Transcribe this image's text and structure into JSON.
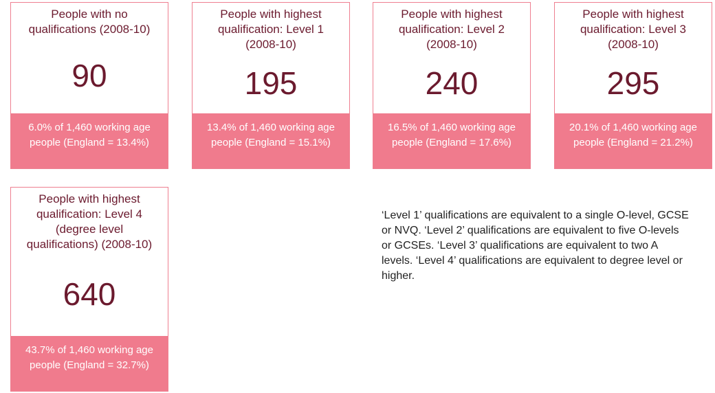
{
  "cards": [
    {
      "title": "People with no qualifications (2008-10)",
      "value": 90,
      "footer": "6.0% of 1,460 working age people (England = 13.4%)"
    },
    {
      "title": "People with highest qualification: Level 1 (2008-10)",
      "value": 195,
      "footer": "13.4% of 1,460 working age people (England = 15.1%)"
    },
    {
      "title": "People with highest qualification: Level 2 (2008-10)",
      "value": 240,
      "footer": "16.5% of 1,460 working age people (England = 17.6%)"
    },
    {
      "title": "People with highest qualification: Level 3 (2008-10)",
      "value": 295,
      "footer": "20.1% of 1,460 working age people (England = 21.2%)"
    },
    {
      "title": "People with highest qualification: Level 4 (degree level qualifications) (2008-10)",
      "value": 640,
      "footer": "43.7% of 1,460 working age people (England = 32.7%)"
    }
  ],
  "note": "‘Level 1’ qualifications are equivalent to a single O-level, GCSE or NVQ. ‘Level 2’ qualifications are equivalent to five O-levels or GCSEs. ‘Level 3’ qualifications are equivalent to two A levels. ‘Level 4’ qualifications are equivalent to degree level or higher."
}
